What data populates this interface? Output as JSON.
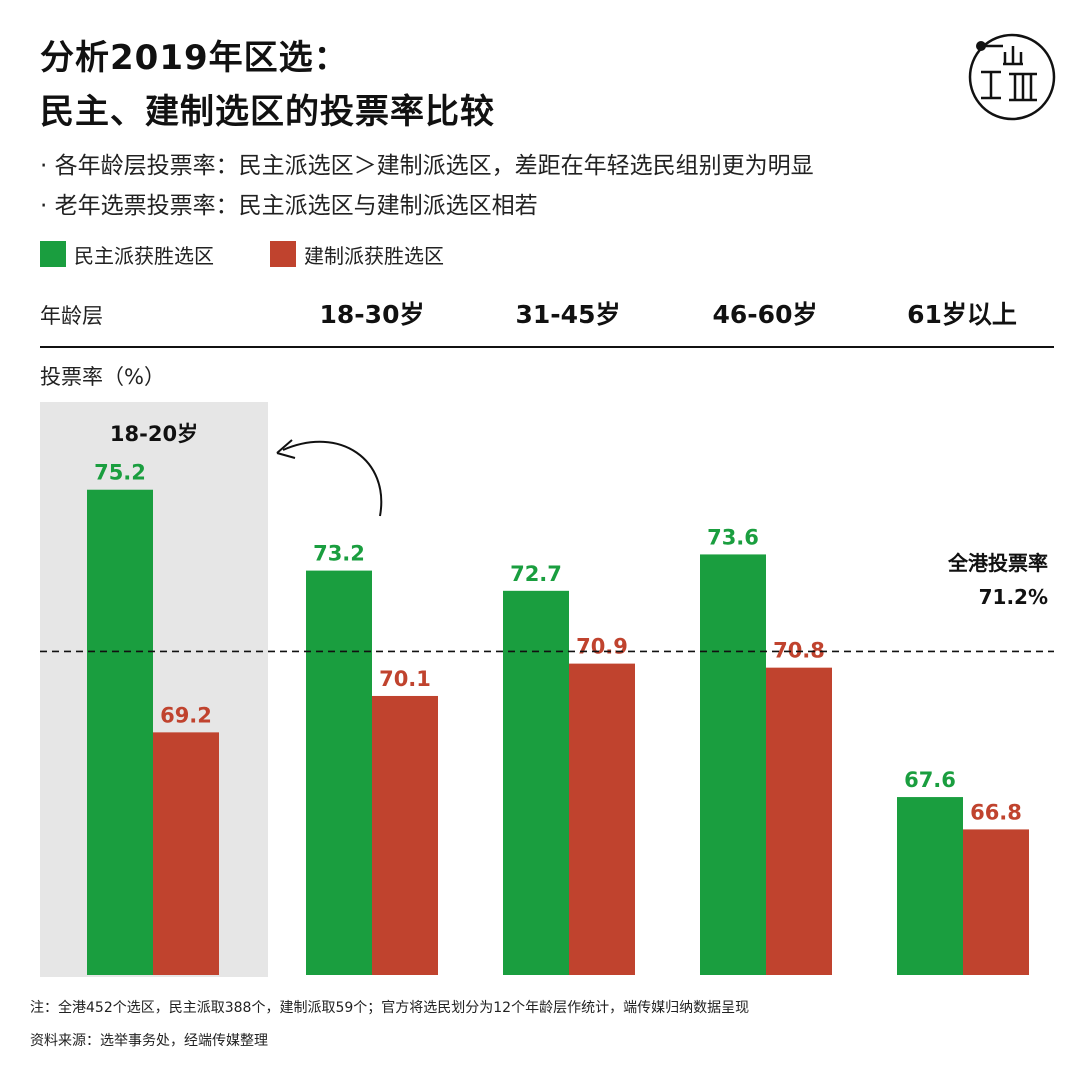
{
  "title_line1": "分析2019年区选：",
  "title_line2": "民主、建制选区的投票率比较",
  "bullets": [
    "· 各年龄层投票率：民主派选区＞建制派选区，差距在年轻选民组别更为明显",
    "· 老年选票投票率：民主派选区与建制派选区相若"
  ],
  "logo_icon": "initium-logo-icon",
  "colors": {
    "democrat": "#1a9e3f",
    "establishment": "#c0432e",
    "highlight_bg": "#e6e6e6"
  },
  "chart_data": {
    "type": "bar",
    "title": "",
    "row_header": "年龄层",
    "ylabel": "投票率（%）",
    "categories": [
      "18-20岁",
      "18-30岁",
      "31-45岁",
      "46-60岁",
      "61岁以上"
    ],
    "header_categories": [
      "18-30岁",
      "31-45岁",
      "46-60岁",
      "61岁以上"
    ],
    "highlight_group_label": "18-20岁",
    "series": [
      {
        "name": "民主派获胜选区",
        "values": [
          75.2,
          73.2,
          72.7,
          73.6,
          67.6
        ]
      },
      {
        "name": "建制派获胜选区",
        "values": [
          69.2,
          70.1,
          70.9,
          70.8,
          66.8
        ]
      }
    ],
    "value_labels": {
      "democrat": [
        "75.2",
        "73.2",
        "72.7",
        "73.6",
        "67.6"
      ],
      "establishment": [
        "69.2",
        "70.1",
        "70.9",
        "70.8",
        "66.8"
      ]
    },
    "reference": {
      "label": "全港投票率",
      "value": 71.2,
      "value_label": "71.2%"
    },
    "legend_position": "top-left",
    "grid": false
  },
  "footnotes": [
    "注：全港452个选区，民主派取388个，建制派取59个；官方将选民划分为12个年龄层作统计，端传媒归纳数据呈现",
    "资料来源：选举事务处，经端传媒整理"
  ]
}
